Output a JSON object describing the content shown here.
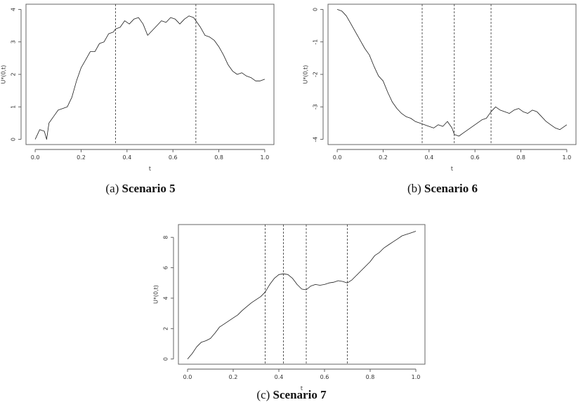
{
  "chart_data": [
    {
      "type": "line",
      "xlabel": "t",
      "ylabel": "U*(0,t)",
      "xlim": [
        0.0,
        1.0
      ],
      "ylim": [
        0,
        4
      ],
      "xticks": [
        "0.0",
        "0.2",
        "0.4",
        "0.6",
        "0.8",
        "1.0"
      ],
      "yticks": [
        "0",
        "1",
        "2",
        "3",
        "4"
      ],
      "vlines": [
        0.35,
        0.7
      ],
      "x": [
        0.0,
        0.02,
        0.04,
        0.05,
        0.06,
        0.08,
        0.1,
        0.12,
        0.14,
        0.16,
        0.18,
        0.2,
        0.22,
        0.24,
        0.26,
        0.28,
        0.3,
        0.32,
        0.34,
        0.35,
        0.37,
        0.39,
        0.41,
        0.43,
        0.45,
        0.47,
        0.49,
        0.51,
        0.53,
        0.55,
        0.57,
        0.59,
        0.61,
        0.63,
        0.65,
        0.67,
        0.69,
        0.7,
        0.72,
        0.74,
        0.76,
        0.78,
        0.8,
        0.82,
        0.84,
        0.86,
        0.88,
        0.9,
        0.92,
        0.94,
        0.96,
        0.98,
        1.0
      ],
      "values": [
        0.0,
        0.3,
        0.25,
        0.0,
        0.5,
        0.7,
        0.9,
        0.95,
        1.0,
        1.3,
        1.8,
        2.2,
        2.45,
        2.7,
        2.7,
        2.95,
        3.0,
        3.25,
        3.3,
        3.4,
        3.45,
        3.65,
        3.55,
        3.7,
        3.75,
        3.55,
        3.2,
        3.35,
        3.5,
        3.65,
        3.6,
        3.75,
        3.7,
        3.55,
        3.7,
        3.8,
        3.75,
        3.65,
        3.45,
        3.2,
        3.15,
        3.05,
        2.85,
        2.6,
        2.3,
        2.1,
        2.0,
        2.05,
        1.95,
        1.9,
        1.8,
        1.8,
        1.85
      ],
      "caption_prefix": "(a)",
      "caption_bold": "Scenario 5"
    },
    {
      "type": "line",
      "xlabel": "t",
      "ylabel": "U*(0,t)",
      "xlim": [
        0.0,
        1.0
      ],
      "ylim": [
        -4,
        0
      ],
      "xticks": [
        "0.0",
        "0.2",
        "0.4",
        "0.6",
        "0.8",
        "1.0"
      ],
      "yticks": [
        "0",
        "-1",
        "-2",
        "-3",
        "-4"
      ],
      "vlines": [
        0.37,
        0.51,
        0.67
      ],
      "x": [
        0.0,
        0.02,
        0.04,
        0.06,
        0.08,
        0.1,
        0.12,
        0.14,
        0.16,
        0.18,
        0.2,
        0.22,
        0.24,
        0.26,
        0.28,
        0.3,
        0.32,
        0.34,
        0.36,
        0.38,
        0.4,
        0.42,
        0.44,
        0.46,
        0.48,
        0.5,
        0.51,
        0.53,
        0.55,
        0.57,
        0.59,
        0.61,
        0.63,
        0.65,
        0.67,
        0.69,
        0.71,
        0.73,
        0.75,
        0.77,
        0.79,
        0.81,
        0.83,
        0.85,
        0.87,
        0.89,
        0.91,
        0.93,
        0.95,
        0.97,
        0.99,
        1.0
      ],
      "values": [
        0.0,
        -0.05,
        -0.2,
        -0.45,
        -0.7,
        -0.95,
        -1.2,
        -1.4,
        -1.75,
        -2.05,
        -2.2,
        -2.55,
        -2.85,
        -3.05,
        -3.2,
        -3.3,
        -3.35,
        -3.45,
        -3.5,
        -3.55,
        -3.6,
        -3.65,
        -3.55,
        -3.6,
        -3.45,
        -3.65,
        -3.85,
        -3.9,
        -3.8,
        -3.7,
        -3.6,
        -3.5,
        -3.4,
        -3.35,
        -3.15,
        -3.0,
        -3.1,
        -3.15,
        -3.2,
        -3.1,
        -3.05,
        -3.15,
        -3.2,
        -3.1,
        -3.15,
        -3.3,
        -3.45,
        -3.55,
        -3.65,
        -3.7,
        -3.6,
        -3.55
      ],
      "caption_prefix": "(b)",
      "caption_bold": "Scenario 6"
    },
    {
      "type": "line",
      "xlabel": "t",
      "ylabel": "U*(0,t)",
      "xlim": [
        0.0,
        1.0
      ],
      "ylim": [
        0,
        8.5
      ],
      "xticks": [
        "0.0",
        "0.2",
        "0.4",
        "0.6",
        "0.8",
        "1.0"
      ],
      "yticks": [
        "0",
        "2",
        "4",
        "6",
        "8"
      ],
      "vlines": [
        0.34,
        0.42,
        0.52,
        0.7
      ],
      "x": [
        0.0,
        0.02,
        0.04,
        0.06,
        0.08,
        0.1,
        0.12,
        0.14,
        0.16,
        0.18,
        0.2,
        0.22,
        0.24,
        0.26,
        0.28,
        0.3,
        0.32,
        0.34,
        0.36,
        0.38,
        0.4,
        0.42,
        0.44,
        0.46,
        0.48,
        0.5,
        0.52,
        0.54,
        0.56,
        0.58,
        0.6,
        0.62,
        0.64,
        0.66,
        0.68,
        0.7,
        0.72,
        0.74,
        0.76,
        0.78,
        0.8,
        0.82,
        0.84,
        0.86,
        0.88,
        0.9,
        0.92,
        0.94,
        0.96,
        0.98,
        1.0
      ],
      "values": [
        0.0,
        0.35,
        0.8,
        1.1,
        1.2,
        1.35,
        1.7,
        2.1,
        2.3,
        2.5,
        2.7,
        2.9,
        3.2,
        3.45,
        3.7,
        3.9,
        4.1,
        4.4,
        4.9,
        5.3,
        5.55,
        5.6,
        5.55,
        5.3,
        4.9,
        4.6,
        4.55,
        4.8,
        4.9,
        4.85,
        4.9,
        5.0,
        5.05,
        5.15,
        5.1,
        5.0,
        5.2,
        5.5,
        5.8,
        6.1,
        6.4,
        6.8,
        7.0,
        7.3,
        7.5,
        7.7,
        7.9,
        8.1,
        8.2,
        8.3,
        8.4
      ],
      "caption_prefix": "(c)",
      "caption_bold": "Scenario 7"
    }
  ]
}
